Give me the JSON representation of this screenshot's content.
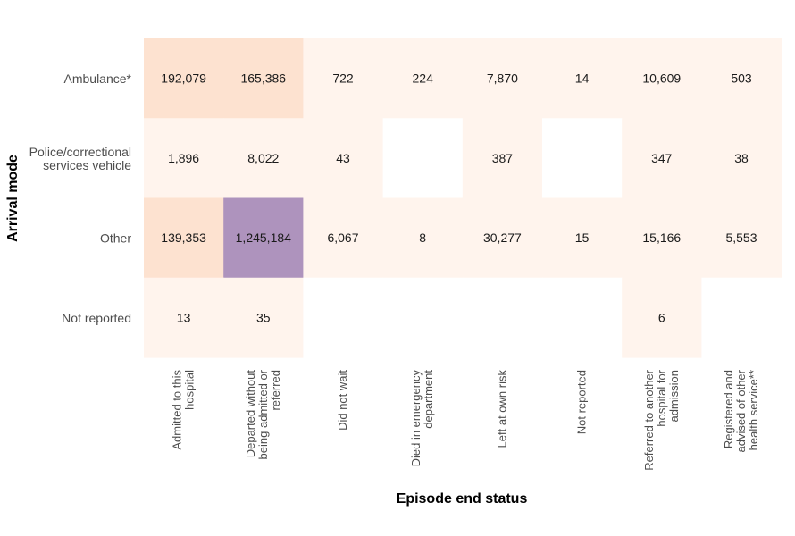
{
  "chart_data": {
    "type": "heatmap",
    "title": "",
    "xlabel": "Episode end status",
    "ylabel": "Arrival mode",
    "rows": [
      "Ambulance*",
      "Police/correctional services vehicle",
      "Other",
      "Not reported"
    ],
    "row_lines": [
      [
        "Ambulance*"
      ],
      [
        "Police/correctional",
        "services vehicle"
      ],
      [
        "Other"
      ],
      [
        "Not reported"
      ]
    ],
    "columns": [
      "Admitted to this hospital",
      "Departed without being admitted or referred",
      "Did not wait",
      "Died in emergency department",
      "Left at own risk",
      "Not reported",
      "Referred to another hospital for admission",
      "Registered and advised of other health service**"
    ],
    "column_lines": [
      [
        "Admitted to this",
        "hospital"
      ],
      [
        "Departed without",
        "being admitted or",
        "referred"
      ],
      [
        "Did not wait"
      ],
      [
        "Died in emergency",
        "department"
      ],
      [
        "Left at own risk"
      ],
      [
        "Not reported"
      ],
      [
        "Referred to another",
        "hospital for",
        "admission"
      ],
      [
        "Registered and",
        "advised of other",
        "health service**"
      ]
    ],
    "values": [
      [
        192079,
        165386,
        722,
        224,
        7870,
        14,
        10609,
        503
      ],
      [
        1896,
        8022,
        43,
        null,
        387,
        null,
        347,
        38
      ],
      [
        139353,
        1245184,
        6067,
        8,
        30277,
        15,
        15166,
        5553
      ],
      [
        13,
        35,
        null,
        null,
        null,
        null,
        6,
        null
      ]
    ],
    "display_values": [
      [
        "192,079",
        "165,386",
        "722",
        "224",
        "7,870",
        "14",
        "10,609",
        "503"
      ],
      [
        "1,896",
        "8,022",
        "43",
        "",
        "387",
        "",
        "347",
        "38"
      ],
      [
        "139,353",
        "1,245,184",
        "6,067",
        "8",
        "30,277",
        "15",
        "15,166",
        "5,553"
      ],
      [
        "13",
        "35",
        "",
        "",
        "",
        "",
        "6",
        ""
      ]
    ],
    "colors": {
      "low": "#fff4ed",
      "mid": "#fde2d0",
      "high": "#ae93bd",
      "empty": "#ffffff"
    }
  }
}
